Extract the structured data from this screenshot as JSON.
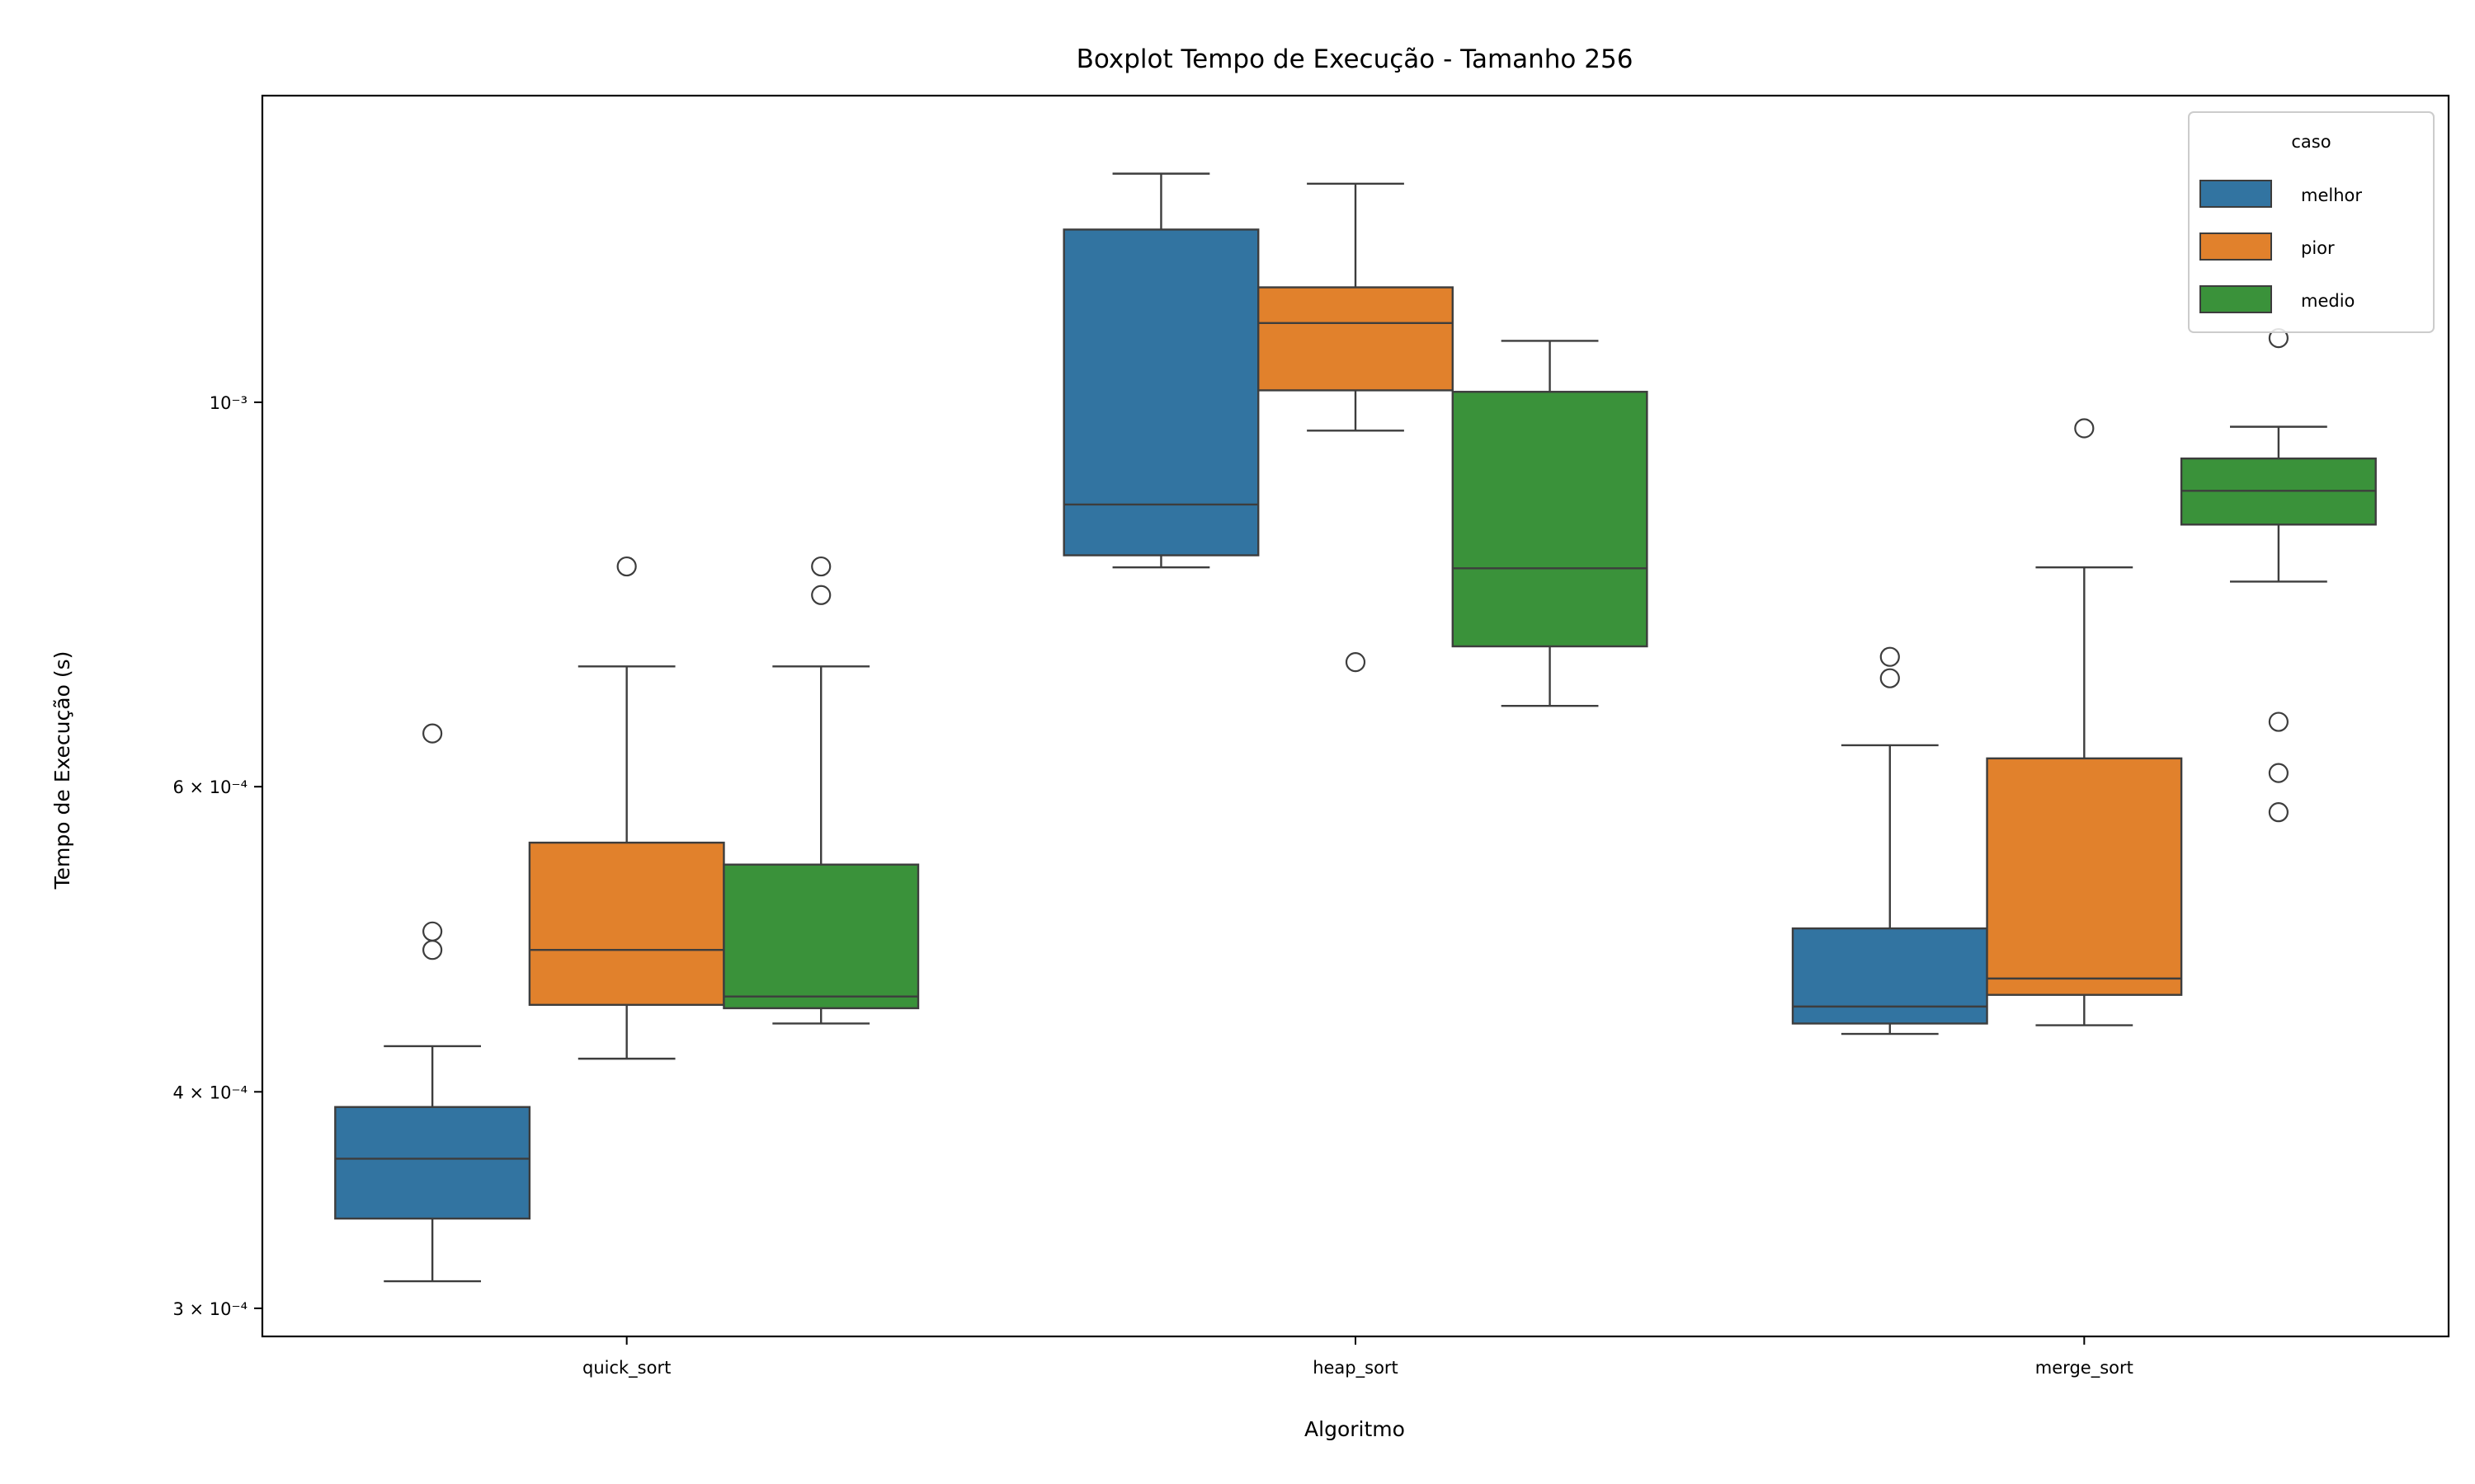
{
  "chart_data": {
    "type": "boxplot",
    "title": "Boxplot Tempo de Execução - Tamanho 256",
    "xlabel": "Algoritmo",
    "ylabel": "Tempo de Execução (s)",
    "yscale": "log",
    "ylim": [
      0.000289,
      0.001503
    ],
    "categories": [
      "quick_sort",
      "heap_sort",
      "merge_sort"
    ],
    "y_ticks": [
      {
        "value": 0.0003,
        "label": "3 × 10⁻⁴"
      },
      {
        "value": 0.0004,
        "label": "4 × 10⁻⁴"
      },
      {
        "value": 0.0006,
        "label": "6 × 10⁻⁴"
      },
      {
        "value": 0.001,
        "label": "10⁻³"
      }
    ],
    "legend": {
      "title": "caso",
      "position": "upper right"
    },
    "grid": false,
    "series": [
      {
        "name": "melhor",
        "color": "#3274a1",
        "boxes": [
          {
            "whislo": 0.000311,
            "q1": 0.000338,
            "med": 0.000366,
            "q3": 0.000392,
            "whishi": 0.000425,
            "fliers": [
              0.000483,
              0.000495,
              0.000644
            ]
          },
          {
            "whislo": 0.000803,
            "q1": 0.000816,
            "med": 0.000873,
            "q3": 0.001258,
            "whishi": 0.001355,
            "fliers": []
          },
          {
            "whislo": 0.000432,
            "q1": 0.000438,
            "med": 0.000448,
            "q3": 0.000497,
            "whishi": 0.000634,
            "fliers": [
              0.000693,
              0.000713
            ]
          }
        ]
      },
      {
        "name": "pior",
        "color": "#e1812c",
        "boxes": [
          {
            "whislo": 0.000418,
            "q1": 0.000449,
            "med": 0.000483,
            "q3": 0.000557,
            "whishi": 0.000704,
            "fliers": [
              0.000804
            ]
          },
          {
            "whislo": 0.000963,
            "q1": 0.001016,
            "med": 0.001111,
            "q3": 0.001165,
            "whishi": 0.001337,
            "fliers": [
              0.000708
            ]
          },
          {
            "whislo": 0.000437,
            "q1": 0.000455,
            "med": 0.000465,
            "q3": 0.000623,
            "whishi": 0.000803,
            "fliers": [
              0.000966
            ]
          }
        ]
      },
      {
        "name": "medio",
        "color": "#3a923a",
        "boxes": [
          {
            "whislo": 0.000438,
            "q1": 0.000447,
            "med": 0.000454,
            "q3": 0.000541,
            "whishi": 0.000704,
            "fliers": [
              0.000774,
              0.000804
            ]
          },
          {
            "whislo": 0.000668,
            "q1": 0.000723,
            "med": 0.000802,
            "q3": 0.001014,
            "whishi": 0.001085,
            "fliers": []
          },
          {
            "whislo": 0.000788,
            "q1": 0.00085,
            "med": 0.000889,
            "q3": 0.000928,
            "whishi": 0.000968,
            "fliers": [
              0.00058,
              0.000611,
              0.000654,
              0.001089
            ]
          }
        ]
      }
    ]
  }
}
